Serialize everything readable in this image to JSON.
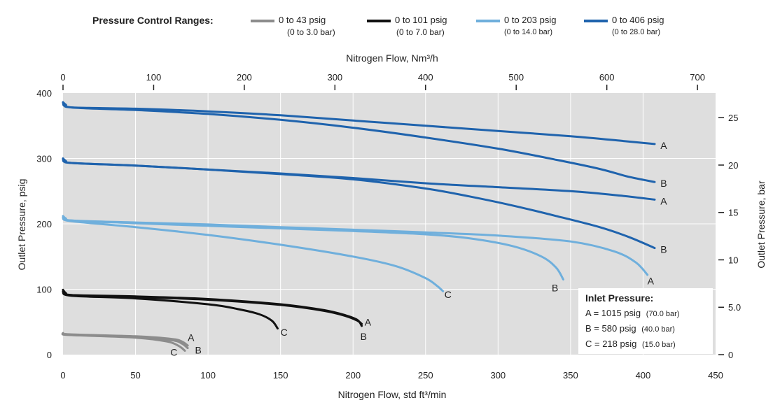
{
  "legend": {
    "title": "Pressure Control Ranges:",
    "items": [
      {
        "psig": "0 to 43 psig",
        "bar": "(0 to 3.0 bar)",
        "color": "#8c8c8c"
      },
      {
        "psig": "0 to 101 psig",
        "bar": "(0 to 7.0 bar)",
        "color": "#111111"
      },
      {
        "psig": "0 to 203 psig",
        "bar": "(0 to 14.0 bar)",
        "color": "#6fafdc"
      },
      {
        "psig": "0 to 406 psig",
        "bar": "(0 to 28.0 bar)",
        "color": "#1f63ad"
      }
    ]
  },
  "inlet_box": {
    "title": "Inlet Pressure:",
    "lines": [
      {
        "main": "A = 1015 psig",
        "sub": "(70.0 bar)"
      },
      {
        "main": "B = 580 psig",
        "sub": "(40.0 bar)"
      },
      {
        "main": "C = 218 psig",
        "sub": "(15.0 bar)"
      }
    ]
  },
  "chart_data": {
    "type": "line",
    "xlabel": "Nitrogen Flow, std ft³/min",
    "ylabel": "Outlet Pressure, psig",
    "x2label": "Nitrogen Flow, Nm³/h",
    "y2label": "Outlet Pressure, bar",
    "xlim": [
      0,
      450
    ],
    "ylim": [
      0,
      400
    ],
    "x_ticks": [
      "0",
      "50",
      "100",
      "150",
      "200",
      "250",
      "300",
      "350",
      "400",
      "450"
    ],
    "y_ticks": [
      "0",
      "100",
      "200",
      "300",
      "400"
    ],
    "x2_ticks": [
      "0",
      "100",
      "200",
      "300",
      "400",
      "500",
      "600",
      "700"
    ],
    "y2_ticks": [
      "0",
      "5.0",
      "10",
      "15",
      "20",
      "25"
    ],
    "x2_per_x": 1.6,
    "y2_per_y": 0.069,
    "grid": true,
    "background": "#dedede",
    "series": [
      {
        "range": "406",
        "label": "A",
        "color": "#1f63ad",
        "x": [
          0,
          2,
          6,
          50,
          100,
          150,
          200,
          250,
          300,
          350,
          385,
          408
        ],
        "y": [
          386,
          382,
          378,
          376,
          372,
          366,
          358,
          350,
          342,
          334,
          327,
          322
        ]
      },
      {
        "range": "406",
        "label": "B",
        "color": "#1f63ad",
        "x": [
          0,
          6,
          50,
          100,
          150,
          200,
          250,
          300,
          340,
          370,
          390,
          408
        ],
        "y": [
          385,
          378,
          374,
          368,
          359,
          347,
          332,
          315,
          298,
          284,
          272,
          264
        ]
      },
      {
        "range": "406",
        "label": "A",
        "color": "#1f63ad",
        "x": [
          0,
          2,
          6,
          50,
          100,
          150,
          200,
          250,
          300,
          350,
          385,
          408
        ],
        "y": [
          300,
          296,
          293,
          289,
          283,
          277,
          270,
          262,
          256,
          250,
          243,
          237
        ]
      },
      {
        "range": "406",
        "label": "B",
        "color": "#1f63ad",
        "x": [
          0,
          6,
          50,
          100,
          150,
          200,
          250,
          280,
          310,
          340,
          370,
          390,
          408
        ],
        "y": [
          298,
          293,
          289,
          283,
          276,
          268,
          254,
          242,
          228,
          212,
          195,
          180,
          163
        ]
      },
      {
        "range": "203",
        "label": "A",
        "color": "#6fafdc",
        "x": [
          0,
          2,
          6,
          50,
          100,
          150,
          200,
          250,
          300,
          350,
          380,
          395,
          403
        ],
        "y": [
          212,
          208,
          205,
          202,
          199,
          195,
          191,
          187,
          182,
          173,
          158,
          141,
          122
        ]
      },
      {
        "range": "203",
        "label": "B",
        "color": "#6fafdc",
        "x": [
          0,
          6,
          50,
          100,
          150,
          200,
          250,
          280,
          310,
          330,
          340,
          345
        ],
        "y": [
          210,
          205,
          201,
          197,
          193,
          189,
          184,
          178,
          166,
          150,
          133,
          115
        ]
      },
      {
        "range": "203",
        "label": "C",
        "color": "#6fafdc",
        "x": [
          0,
          6,
          50,
          100,
          150,
          200,
          230,
          250,
          258,
          262
        ],
        "y": [
          209,
          204,
          195,
          183,
          168,
          150,
          135,
          117,
          105,
          97
        ]
      },
      {
        "range": "101",
        "label": "A",
        "color": "#111111",
        "x": [
          0,
          2,
          6,
          50,
          100,
          150,
          180,
          195,
          203,
          206
        ],
        "y": [
          99,
          94,
          91,
          89,
          85,
          77,
          68,
          60,
          53,
          44
        ]
      },
      {
        "range": "101",
        "label": "B",
        "color": "#111111",
        "x": [
          0,
          6,
          50,
          100,
          150,
          180,
          195,
          203,
          206
        ],
        "y": [
          97,
          91,
          88,
          84,
          76,
          67,
          59,
          52,
          47
        ]
      },
      {
        "range": "101",
        "label": "C",
        "color": "#111111",
        "x": [
          0,
          6,
          50,
          100,
          120,
          135,
          144,
          148
        ],
        "y": [
          96,
          90,
          86,
          77,
          70,
          62,
          52,
          40
        ]
      },
      {
        "range": "43",
        "label": "A",
        "color": "#8c8c8c",
        "x": [
          0,
          5,
          50,
          75,
          82,
          86
        ],
        "y": [
          33,
          31,
          28,
          24,
          20,
          14
        ]
      },
      {
        "range": "43",
        "label": "B",
        "color": "#8c8c8c",
        "x": [
          0,
          5,
          50,
          75,
          82,
          86
        ],
        "y": [
          32,
          30,
          27,
          22,
          17,
          10
        ]
      },
      {
        "range": "43",
        "label": "C",
        "color": "#8c8c8c",
        "x": [
          0,
          5,
          50,
          72,
          80,
          84
        ],
        "y": [
          32,
          30,
          26,
          20,
          13,
          6
        ]
      }
    ],
    "curve_labels": [
      {
        "text": "A",
        "x": 412,
        "y": 320
      },
      {
        "text": "B",
        "x": 412,
        "y": 262
      },
      {
        "text": "A",
        "x": 412,
        "y": 235
      },
      {
        "text": "B",
        "x": 412,
        "y": 161
      },
      {
        "text": "A",
        "x": 403,
        "y": 113
      },
      {
        "text": "B",
        "x": 337,
        "y": 102
      },
      {
        "text": "C",
        "x": 263,
        "y": 92
      },
      {
        "text": "A",
        "x": 208,
        "y": 50
      },
      {
        "text": "B",
        "x": 205,
        "y": 28
      },
      {
        "text": "C",
        "x": 150,
        "y": 34
      },
      {
        "text": "A",
        "x": 86,
        "y": 26
      },
      {
        "text": "B",
        "x": 91,
        "y": 7
      },
      {
        "text": "C",
        "x": 74,
        "y": 4
      }
    ]
  }
}
